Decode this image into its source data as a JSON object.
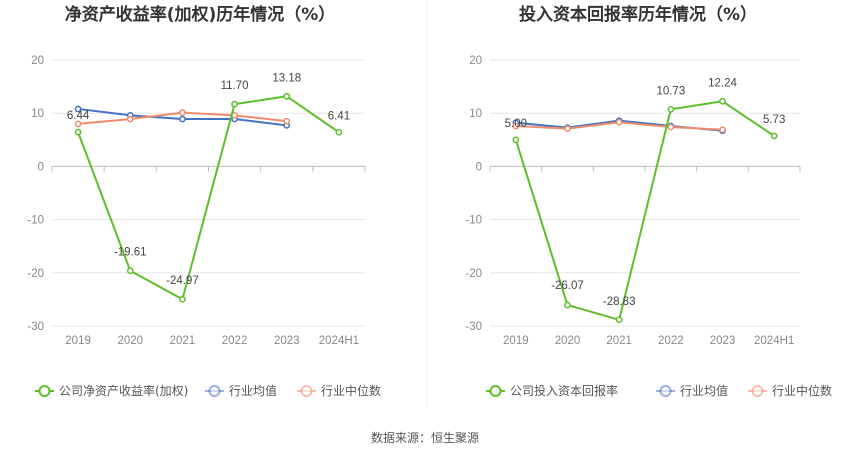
{
  "chart_data": [
    {
      "type": "line",
      "title": "净资产收益率(加权)历年情况（%）",
      "categories": [
        "2019",
        "2020",
        "2021",
        "2022",
        "2023",
        "2024H1"
      ],
      "yticks": [
        "20",
        "10",
        "0",
        "-10",
        "-20",
        "-30"
      ],
      "ylim": [
        -30,
        20
      ],
      "grid": true,
      "legend_position": "bottom-left",
      "series": [
        {
          "name": "公司净资产收益率(加权)",
          "color": "#5cbf2a",
          "values": [
            6.44,
            -19.61,
            -24.97,
            11.7,
            13.18,
            6.41
          ],
          "labels": [
            "6.44",
            "-19.61",
            "-24.97",
            "11.70",
            "13.18",
            "6.41"
          ]
        },
        {
          "name": "行业均值",
          "color": "#4472c4",
          "values": [
            10.8,
            9.6,
            8.9,
            8.9,
            7.7,
            null
          ]
        },
        {
          "name": "行业中位数",
          "color": "#f08c6c",
          "values": [
            8.0,
            8.9,
            10.1,
            9.6,
            8.5,
            null
          ]
        }
      ]
    },
    {
      "type": "line",
      "title": "投入资本回报率历年情况（%）",
      "categories": [
        "2019",
        "2020",
        "2021",
        "2022",
        "2023",
        "2024H1"
      ],
      "yticks": [
        "20",
        "10",
        "0",
        "-10",
        "-20",
        "-30"
      ],
      "ylim": [
        -30,
        20
      ],
      "grid": true,
      "legend_position": "bottom-left",
      "series": [
        {
          "name": "公司投入资本回报率",
          "color": "#5cbf2a",
          "values": [
            5.0,
            -26.07,
            -28.83,
            10.73,
            12.24,
            5.73
          ],
          "labels": [
            "5.00",
            "-26.07",
            "-28.83",
            "10.73",
            "12.24",
            "5.73"
          ]
        },
        {
          "name": "行业均值",
          "color": "#4472c4",
          "values": [
            8.2,
            7.3,
            8.6,
            7.6,
            6.7,
            null
          ]
        },
        {
          "name": "行业中位数",
          "color": "#f08c6c",
          "values": [
            7.6,
            7.1,
            8.3,
            7.4,
            6.9,
            null
          ]
        }
      ]
    }
  ],
  "source": "数据来源：恒生聚源"
}
